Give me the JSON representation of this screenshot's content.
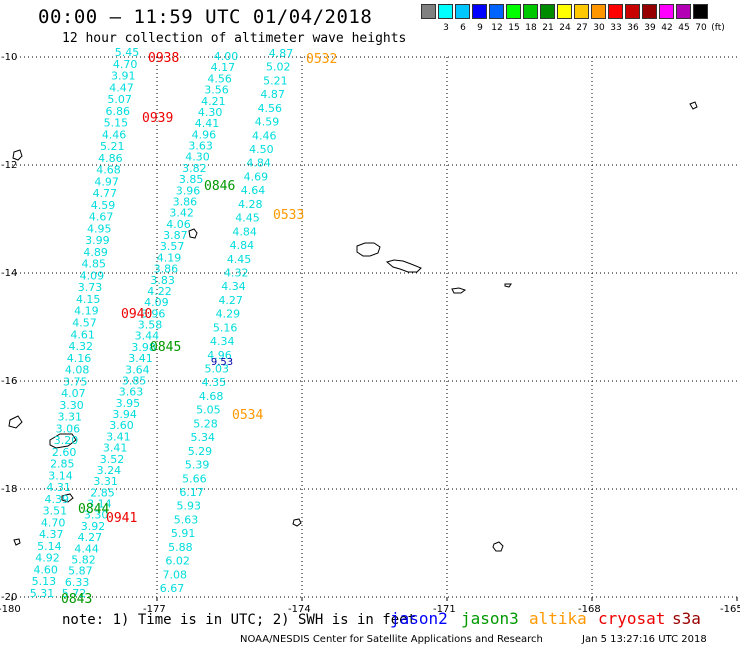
{
  "title": "00:00 – 11:59 UTC 01/04/2018",
  "subtitle": "12 hour collection of altimeter wave heights",
  "legend": {
    "swatches": [
      {
        "color": "#808080",
        "label": ""
      },
      {
        "color": "#00ffff",
        "label": "3"
      },
      {
        "color": "#00c8ff",
        "label": "6"
      },
      {
        "color": "#0000ff",
        "label": "9"
      },
      {
        "color": "#0064ff",
        "label": "12"
      },
      {
        "color": "#00ff00",
        "label": "15"
      },
      {
        "color": "#00c800",
        "label": "18"
      },
      {
        "color": "#008c00",
        "label": "21"
      },
      {
        "color": "#ffff00",
        "label": "24"
      },
      {
        "color": "#ffc800",
        "label": "27"
      },
      {
        "color": "#ff9600",
        "label": "30"
      },
      {
        "color": "#ff0000",
        "label": "33"
      },
      {
        "color": "#c80000",
        "label": "36"
      },
      {
        "color": "#960000",
        "label": "39"
      },
      {
        "color": "#ff00ff",
        "label": "42"
      },
      {
        "color": "#b400b4",
        "label": "45"
      },
      {
        "color": "#000000",
        "label": "70"
      }
    ],
    "unit": "(ft)"
  },
  "axes": {
    "lon_ticks": [
      "-180",
      "-177",
      "-174",
      "-171",
      "-168",
      "-165"
    ],
    "lat_ticks": [
      "-10",
      "-12",
      "-14",
      "-16",
      "-18",
      "-20"
    ]
  },
  "tracks": [
    {
      "values": [
        "5.45",
        "4.70",
        "3.91",
        "4.47",
        "5.07",
        "6.86",
        "5.15",
        "4.46",
        "5.21",
        "4.86",
        "4.68",
        "4.97",
        "4.77",
        "4.59",
        "4.67",
        "4.95",
        "3.99",
        "4.89",
        "4.85",
        "4.09",
        "3.73",
        "4.15",
        "4.19",
        "4.57",
        "4.61",
        "4.32",
        "4.16",
        "4.08",
        "3.75",
        "4.07",
        "3.30",
        "3.31",
        "3.06",
        "3.20",
        "2.60",
        "2.85",
        "3.14",
        "4.31",
        "4.39",
        "3.51",
        "4.70",
        "4.37",
        "5.14",
        "4.92",
        "4.60",
        "5.13",
        "5.31"
      ]
    },
    {
      "values": [
        "4.00",
        "4.17",
        "4.56",
        "3.56",
        "4.21",
        "4.30",
        "4.41",
        "4.96",
        "3.63",
        "4.30",
        "3.82",
        "3.85",
        "3.96",
        "3.86",
        "3.42",
        "4.06",
        "3.87",
        "3.57",
        "4.19",
        "3.86",
        "3.83",
        "4.22",
        "4.09",
        "3.96",
        "3.58",
        "3.44",
        "3.98",
        "3.41",
        "3.64",
        "3.85",
        "3.63",
        "3.95",
        "3.94",
        "3.60",
        "3.41",
        "3.41",
        "3.52",
        "3.24",
        "3.31",
        "2.85",
        "3.14",
        "3.30",
        "3.92",
        "4.27",
        "4.44",
        "5.82",
        "5.87",
        "6.33",
        "5.72"
      ]
    },
    {
      "values": [
        "4.87",
        "5.02",
        "5.21",
        "4.87",
        "4.56",
        "4.59",
        "4.46",
        "4.50",
        "4.84",
        "4.69",
        "4.64",
        "4.28",
        "4.45",
        "4.84",
        "4.84",
        "4.45",
        "4.32",
        "4.34",
        "4.27",
        "4.29",
        "5.16",
        "4.34",
        "4.96",
        "5.03",
        "4.35",
        "4.68",
        "5.05",
        "5.28",
        "5.34",
        "5.29",
        "5.39",
        "5.66",
        "6.17",
        "5.93",
        "5.63",
        "5.91",
        "5.88",
        "6.02",
        "7.08",
        "6.67"
      ]
    }
  ],
  "times": [
    {
      "text": "0938",
      "sat": "cryosat"
    },
    {
      "text": "0939",
      "sat": "cryosat"
    },
    {
      "text": "0940",
      "sat": "cryosat"
    },
    {
      "text": "0941",
      "sat": "cryosat"
    },
    {
      "text": "0532",
      "sat": "altika"
    },
    {
      "text": "0533",
      "sat": "altika"
    },
    {
      "text": "0534",
      "sat": "altika"
    },
    {
      "text": "0846",
      "sat": "jason3"
    },
    {
      "text": "0845",
      "sat": "jason3"
    },
    {
      "text": "0844",
      "sat": "jason3"
    },
    {
      "text": "0843",
      "sat": "jason3"
    }
  ],
  "extra_value": {
    "text": "9.53",
    "color": "#0000aa"
  },
  "note": "note: 1) Time is in UTC; 2) SWH is in feet",
  "satellites": [
    {
      "name": "jason2",
      "color": "#0000ff"
    },
    {
      "name": "jason3",
      "color": "#009900"
    },
    {
      "name": "altika",
      "color": "#ff9900"
    },
    {
      "name": "cryosat",
      "color": "#ee0000"
    },
    {
      "name": "s3a",
      "color": "#990000"
    }
  ],
  "colors": {
    "value_text": "#00dddd",
    "grid": "#000000"
  },
  "credit": "NOAA/NESDIS Center for Satellite Applications and Research",
  "timestamp": "Jan  5 13:27:16 UTC 2018"
}
